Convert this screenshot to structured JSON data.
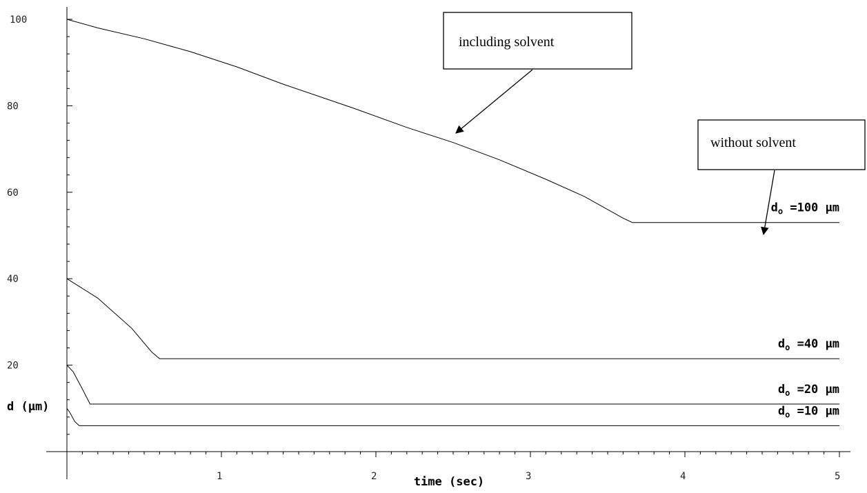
{
  "chart_data": {
    "type": "line",
    "title": "",
    "xlabel": "time (sec)",
    "ylabel": "d (µm)",
    "xlim": [
      0,
      5
    ],
    "ylim": [
      0,
      100
    ],
    "x_ticks": [
      "1",
      "2",
      "3",
      "4",
      "5"
    ],
    "y_ticks": [
      "20",
      "40",
      "60",
      "80",
      "100"
    ],
    "grid": false,
    "series": [
      {
        "name": "dₒ =100 µm",
        "prefix": "d",
        "subscript": "o",
        "suffix": " =100 µm",
        "x": [
          0,
          0.2,
          0.5,
          0.8,
          1.1,
          1.4,
          1.85,
          2.2,
          2.5,
          2.8,
          3.1,
          3.35,
          3.6,
          3.66,
          3.7,
          5.0
        ],
        "y": [
          100,
          98,
          95.5,
          92.5,
          89,
          85,
          79.5,
          75,
          71.5,
          67.5,
          63,
          59,
          54,
          53,
          53,
          53
        ]
      },
      {
        "name": "dₒ =40 µm",
        "prefix": "d",
        "subscript": "o",
        "suffix": " =40 µm",
        "x": [
          0,
          0.2,
          0.42,
          0.55,
          0.6,
          5.0
        ],
        "y": [
          40,
          35.5,
          28.5,
          23,
          21.5,
          21.5
        ]
      },
      {
        "name": "dₒ =20 µm",
        "prefix": "d",
        "subscript": "o",
        "suffix": " =20 µm",
        "x": [
          0,
          0.04,
          0.1,
          0.15,
          5.0
        ],
        "y": [
          20,
          18.5,
          14.5,
          11,
          11
        ]
      },
      {
        "name": "dₒ =10 µm",
        "prefix": "d",
        "subscript": "o",
        "suffix": " =10 µm",
        "x": [
          0,
          0.02,
          0.05,
          0.08,
          5.0
        ],
        "y": [
          10,
          9,
          7,
          6,
          6
        ]
      }
    ],
    "annotations": [
      {
        "text": "including solvent",
        "target_x": 2.5,
        "target_y": 71.5
      },
      {
        "text": "without solvent",
        "target_x": 4.5,
        "target_y": 53
      }
    ]
  }
}
